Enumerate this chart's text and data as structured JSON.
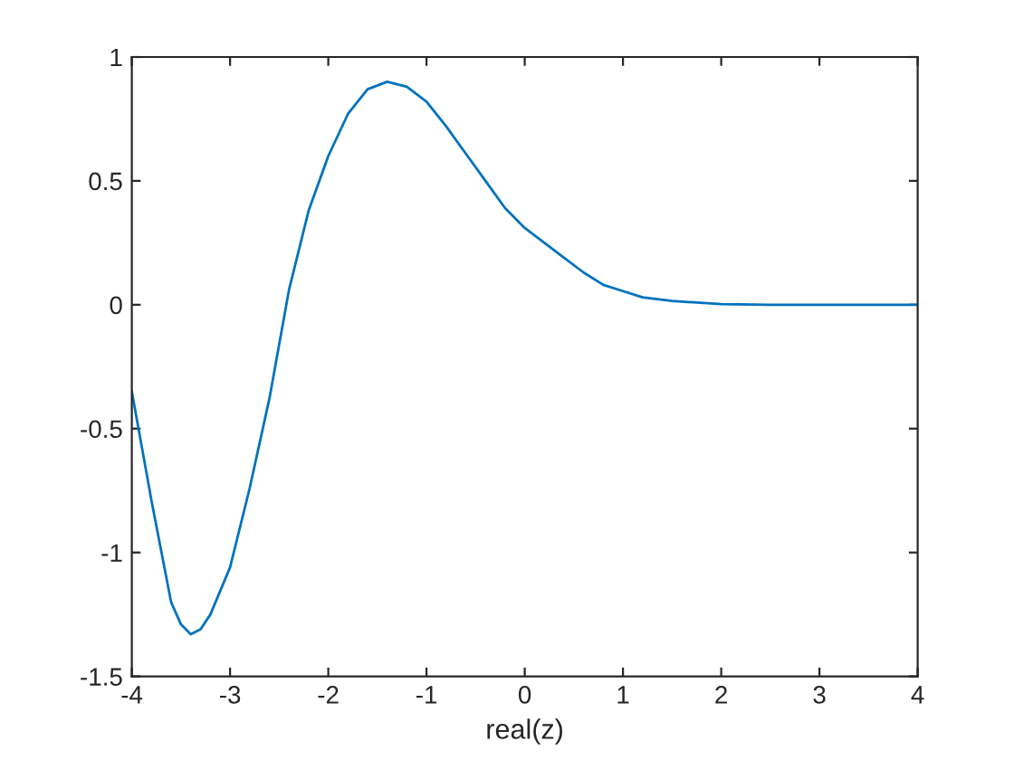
{
  "chart_data": {
    "type": "line",
    "xlabel": "real(z)",
    "x": [
      -4,
      -3.8,
      -3.6,
      -3.5,
      -3.4,
      -3.3,
      -3.2,
      -3.0,
      -2.8,
      -2.6,
      -2.4,
      -2.2,
      -2.0,
      -1.8,
      -1.6,
      -1.4,
      -1.2,
      -1.0,
      -0.8,
      -0.6,
      -0.4,
      -0.2,
      0,
      0.2,
      0.4,
      0.6,
      0.8,
      1.0,
      1.2,
      1.5,
      2.0,
      2.5,
      3.0,
      3.5,
      4.0
    ],
    "series": [
      {
        "color": "#0072bd",
        "values": [
          -0.35,
          -0.79,
          -1.2,
          -1.29,
          -1.33,
          -1.31,
          -1.25,
          -1.06,
          -0.74,
          -0.38,
          0.06,
          0.38,
          0.6,
          0.77,
          0.87,
          0.9,
          0.88,
          0.82,
          0.72,
          0.61,
          0.5,
          0.39,
          0.31,
          0.25,
          0.19,
          0.13,
          0.08,
          0.055,
          0.03,
          0.015,
          0.003,
          0,
          0,
          0,
          0
        ]
      }
    ],
    "xlim": [
      -4,
      4
    ],
    "ylim": [
      -1.5,
      1
    ],
    "xticks": [
      -4,
      -3,
      -2,
      -1,
      0,
      1,
      2,
      3,
      4
    ],
    "yticks": [
      -1.5,
      -1,
      -0.5,
      0,
      0.5,
      1
    ],
    "grid": false,
    "legend": false,
    "marker": "none",
    "line_style": "solid"
  }
}
